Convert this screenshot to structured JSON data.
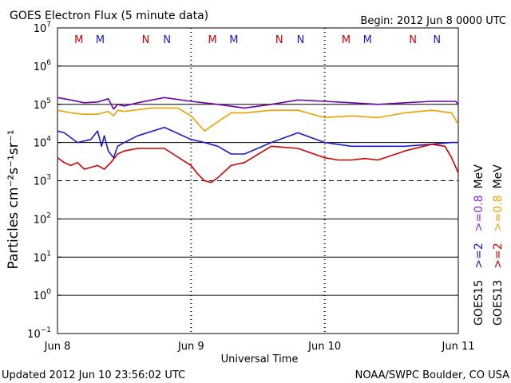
{
  "chart_data": {
    "type": "line",
    "title": "GOES Electron Flux (5 minute data)",
    "begin_label": "Begin: 2012 Jun 8 0000 UTC",
    "xlabel": "Universal Time",
    "ylabel": "Particles cm⁻²s⁻¹sr⁻¹",
    "updated": "Updated 2012 Jun 10 23:56:02 UTC",
    "credit": "NOAA/SWPC Boulder, CO USA",
    "y_scale": "log",
    "ylim": [
      0.1,
      10000000
    ],
    "y_ticks": [
      {
        "base": "10",
        "exp": "7"
      },
      {
        "base": "10",
        "exp": "6"
      },
      {
        "base": "10",
        "exp": "5"
      },
      {
        "base": "10",
        "exp": "4"
      },
      {
        "base": "10",
        "exp": "3"
      },
      {
        "base": "10",
        "exp": "2"
      },
      {
        "base": "10",
        "exp": "1"
      },
      {
        "base": "10",
        "exp": "0"
      },
      {
        "base": "10",
        "exp": "−1"
      }
    ],
    "xlim": [
      0,
      3
    ],
    "x_ticks": [
      "Jun 8",
      "Jun 9",
      "Jun 10",
      "Jun 11"
    ],
    "threshold": 1000,
    "gridlines": [
      1000000,
      100000,
      10000,
      100,
      10,
      1
    ],
    "markers": [
      {
        "label": "M",
        "x": 0.16,
        "color": "#d40000"
      },
      {
        "label": "M",
        "x": 0.32,
        "color": "#1a1acc"
      },
      {
        "label": "N",
        "x": 0.66,
        "color": "#d40000"
      },
      {
        "label": "N",
        "x": 0.82,
        "color": "#1a1acc"
      },
      {
        "label": "M",
        "x": 1.16,
        "color": "#d40000"
      },
      {
        "label": "M",
        "x": 1.32,
        "color": "#1a1acc"
      },
      {
        "label": "N",
        "x": 1.66,
        "color": "#d40000"
      },
      {
        "label": "N",
        "x": 1.82,
        "color": "#1a1acc"
      },
      {
        "label": "M",
        "x": 2.16,
        "color": "#d40000"
      },
      {
        "label": "M",
        "x": 2.32,
        "color": "#1a1acc"
      },
      {
        "label": "N",
        "x": 2.66,
        "color": "#d40000"
      },
      {
        "label": "N",
        "x": 2.84,
        "color": "#1a1acc"
      }
    ],
    "legend_groups": [
      {
        "sat": "GOES15",
        "items": [
          {
            "label": ">=2",
            "color": "#1a1acc"
          },
          {
            "label": ">=0.8",
            "color": "#8a2be2"
          }
        ],
        "unit": "MeV"
      },
      {
        "sat": "GOES13",
        "items": [
          {
            "label": ">=2",
            "color": "#d40000"
          },
          {
            "label": ">=0.8",
            "color": "#f0a000"
          }
        ],
        "unit": "MeV"
      }
    ],
    "series": [
      {
        "name": "GOES15 >=0.8 MeV",
        "color": "#6a00b0",
        "x": [
          0,
          0.1,
          0.2,
          0.3,
          0.38,
          0.42,
          0.45,
          0.5,
          0.6,
          0.8,
          1.0,
          1.2,
          1.4,
          1.6,
          1.8,
          2.0,
          2.2,
          2.4,
          2.6,
          2.8,
          2.98,
          3.0
        ],
        "y": [
          150000,
          130000,
          110000,
          115000,
          140000,
          75000,
          100000,
          90000,
          110000,
          150000,
          120000,
          100000,
          80000,
          100000,
          130000,
          120000,
          110000,
          100000,
          110000,
          120000,
          120000,
          100000
        ]
      },
      {
        "name": "GOES13 >=0.8 MeV",
        "color": "#f0a000",
        "x": [
          0,
          0.1,
          0.2,
          0.3,
          0.38,
          0.42,
          0.45,
          0.5,
          0.7,
          0.9,
          1.0,
          1.1,
          1.2,
          1.3,
          1.4,
          1.6,
          1.8,
          2.0,
          2.2,
          2.4,
          2.6,
          2.8,
          2.95,
          3.0
        ],
        "y": [
          70000,
          60000,
          55000,
          55000,
          65000,
          50000,
          70000,
          65000,
          80000,
          80000,
          50000,
          20000,
          35000,
          60000,
          60000,
          70000,
          70000,
          45000,
          50000,
          45000,
          60000,
          70000,
          60000,
          30000
        ]
      },
      {
        "name": "GOES15 >=2 MeV",
        "color": "#1a1acc",
        "x": [
          0,
          0.05,
          0.15,
          0.25,
          0.3,
          0.33,
          0.35,
          0.38,
          0.42,
          0.45,
          0.5,
          0.6,
          0.8,
          1.0,
          1.1,
          1.2,
          1.3,
          1.4,
          1.6,
          1.8,
          2.0,
          2.2,
          2.4,
          2.6,
          2.8,
          2.95,
          3.0
        ],
        "y": [
          20000,
          18000,
          10000,
          12000,
          20000,
          8000,
          15000,
          6000,
          4000,
          8000,
          10000,
          15000,
          25000,
          12000,
          10000,
          8000,
          5000,
          5000,
          10000,
          18000,
          10000,
          8000,
          8000,
          8000,
          9000,
          10000,
          10000
        ]
      },
      {
        "name": "GOES13 >=2 MeV",
        "color": "#d40000",
        "x": [
          0,
          0.05,
          0.1,
          0.15,
          0.2,
          0.3,
          0.35,
          0.4,
          0.45,
          0.5,
          0.6,
          0.8,
          1.0,
          1.05,
          1.1,
          1.15,
          1.2,
          1.3,
          1.4,
          1.6,
          1.8,
          2.0,
          2.1,
          2.2,
          2.3,
          2.4,
          2.6,
          2.8,
          2.9,
          2.95,
          3.0
        ],
        "y": [
          4000,
          3000,
          2500,
          3000,
          2000,
          2500,
          2000,
          3000,
          5000,
          6000,
          7000,
          7000,
          2500,
          1500,
          1000,
          900,
          1200,
          2500,
          3000,
          8000,
          7000,
          4000,
          3500,
          3500,
          3800,
          3500,
          6000,
          9000,
          8000,
          4000,
          1600
        ]
      }
    ]
  }
}
